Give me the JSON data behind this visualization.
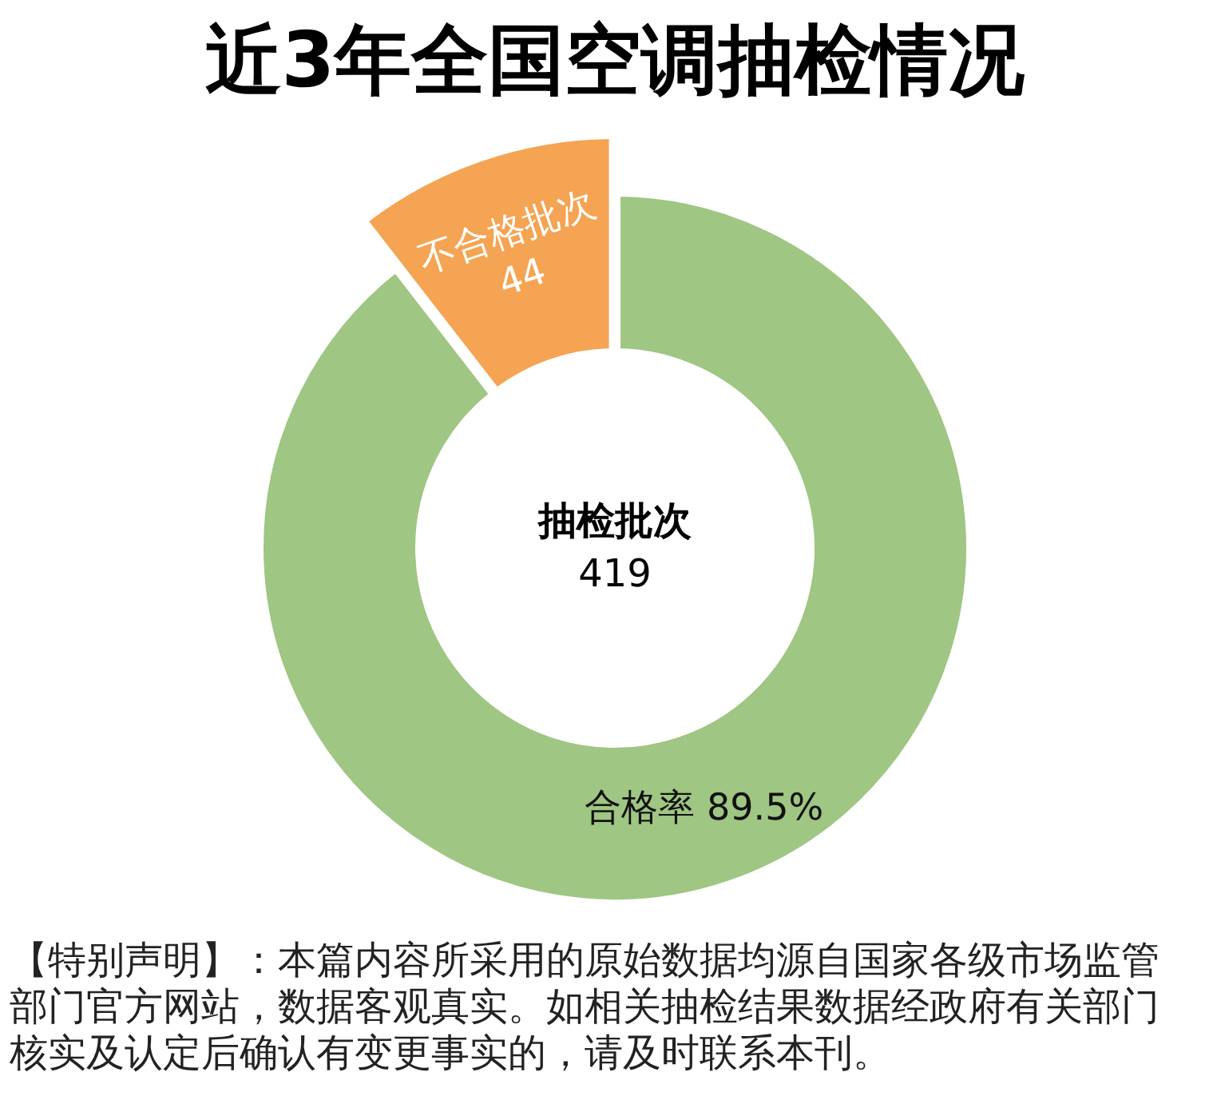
{
  "chart_data": {
    "type": "donut",
    "title": "近3年全国空调抽检情况",
    "categories": [
      null,
      "不合格批次"
    ],
    "values": [
      375,
      44
    ],
    "colors": [
      "#9fc682",
      "#f4a453"
    ],
    "value_labels": [
      null,
      "44"
    ],
    "annotations": [
      "抽检批次\n419",
      "合格率 89.5%",
      "【特别声明】：本篇内容所采用的原始数据均源自国家各级市场监管部门官方网站，数据客观真实。如相关抽检结果数据经政府有关部门核实及认定后确认有变更事实的，请及时联系本刊。"
    ]
  }
}
